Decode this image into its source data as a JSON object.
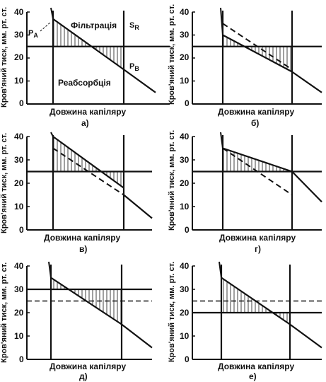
{
  "panels": [
    {
      "id": "a",
      "caption": "а)",
      "xlabel": "Довжина капіляру",
      "ylabel": "Кров'яний тиск, мм. рт. ст.",
      "yticks": [
        "40",
        "30",
        "20",
        "10",
        "0"
      ],
      "colloid_pressure": 25,
      "colloid_dashed": false,
      "hydro_start": 37,
      "hydro_end": 15,
      "ref_start": null,
      "ref_end": null,
      "extension_end": 5,
      "region_top_label": "Фільтрація",
      "region_bottom_label": "Реабсорбція",
      "pa_label": "P",
      "pa_sub": "A",
      "pb_label": "P",
      "pb_sub": "B",
      "sr_label": "S",
      "sr_sub": "R"
    },
    {
      "id": "b",
      "caption": "б)",
      "xlabel": "Довжина капіляру",
      "ylabel": "Кров'яний тиск, мм. рт. ст.",
      "yticks": [
        "40",
        "30",
        "20",
        "10",
        "0"
      ],
      "colloid_pressure": 25,
      "colloid_dashed": false,
      "hydro_start": 30,
      "hydro_end": 14,
      "ref_start": 35,
      "ref_end": 15,
      "extension_end": 5
    },
    {
      "id": "v",
      "caption": "в)",
      "xlabel": "Довжина капіляру",
      "ylabel": "Кров'яний тиск, мм. рт. ст.",
      "yticks": [
        "40",
        "30",
        "20",
        "10",
        "0"
      ],
      "colloid_pressure": 25,
      "colloid_dashed": false,
      "hydro_start": 40,
      "hydro_end": 18,
      "ref_start": 35,
      "ref_end": 15,
      "extension_end": 5
    },
    {
      "id": "h",
      "caption": "г)",
      "xlabel": "Довжина капіляру",
      "ylabel": "Кров'яний тиск, мм. рт. ст.",
      "yticks": [
        "40",
        "30",
        "20",
        "10",
        "0"
      ],
      "colloid_pressure": 25,
      "colloid_dashed": false,
      "hydro_start": 35,
      "hydro_end": 25,
      "ref_start": 35,
      "ref_end": 15,
      "extension_end": 12
    },
    {
      "id": "d",
      "caption": "д)",
      "xlabel": "Довжина капіляру",
      "ylabel": "Кров'яний тиск, мм. рт. ст.",
      "yticks": [
        "40",
        "30",
        "20",
        "10",
        "0"
      ],
      "colloid_pressure": 30,
      "colloid_dashed": false,
      "colloid_reference": 25,
      "hydro_start": 35,
      "hydro_end": 15,
      "ref_start": null,
      "ref_end": null,
      "extension_end": 5
    },
    {
      "id": "e",
      "caption": "е)",
      "xlabel": "Довжина капіляру",
      "ylabel": "Кров'яний тиск, мм. рт. ст.",
      "yticks": [
        "40",
        "30",
        "20",
        "10",
        "0"
      ],
      "colloid_pressure": 20,
      "colloid_dashed": false,
      "colloid_reference": 25,
      "hydro_start": 35,
      "hydro_end": 15,
      "ref_start": null,
      "ref_end": null,
      "extension_end": 5
    }
  ]
}
